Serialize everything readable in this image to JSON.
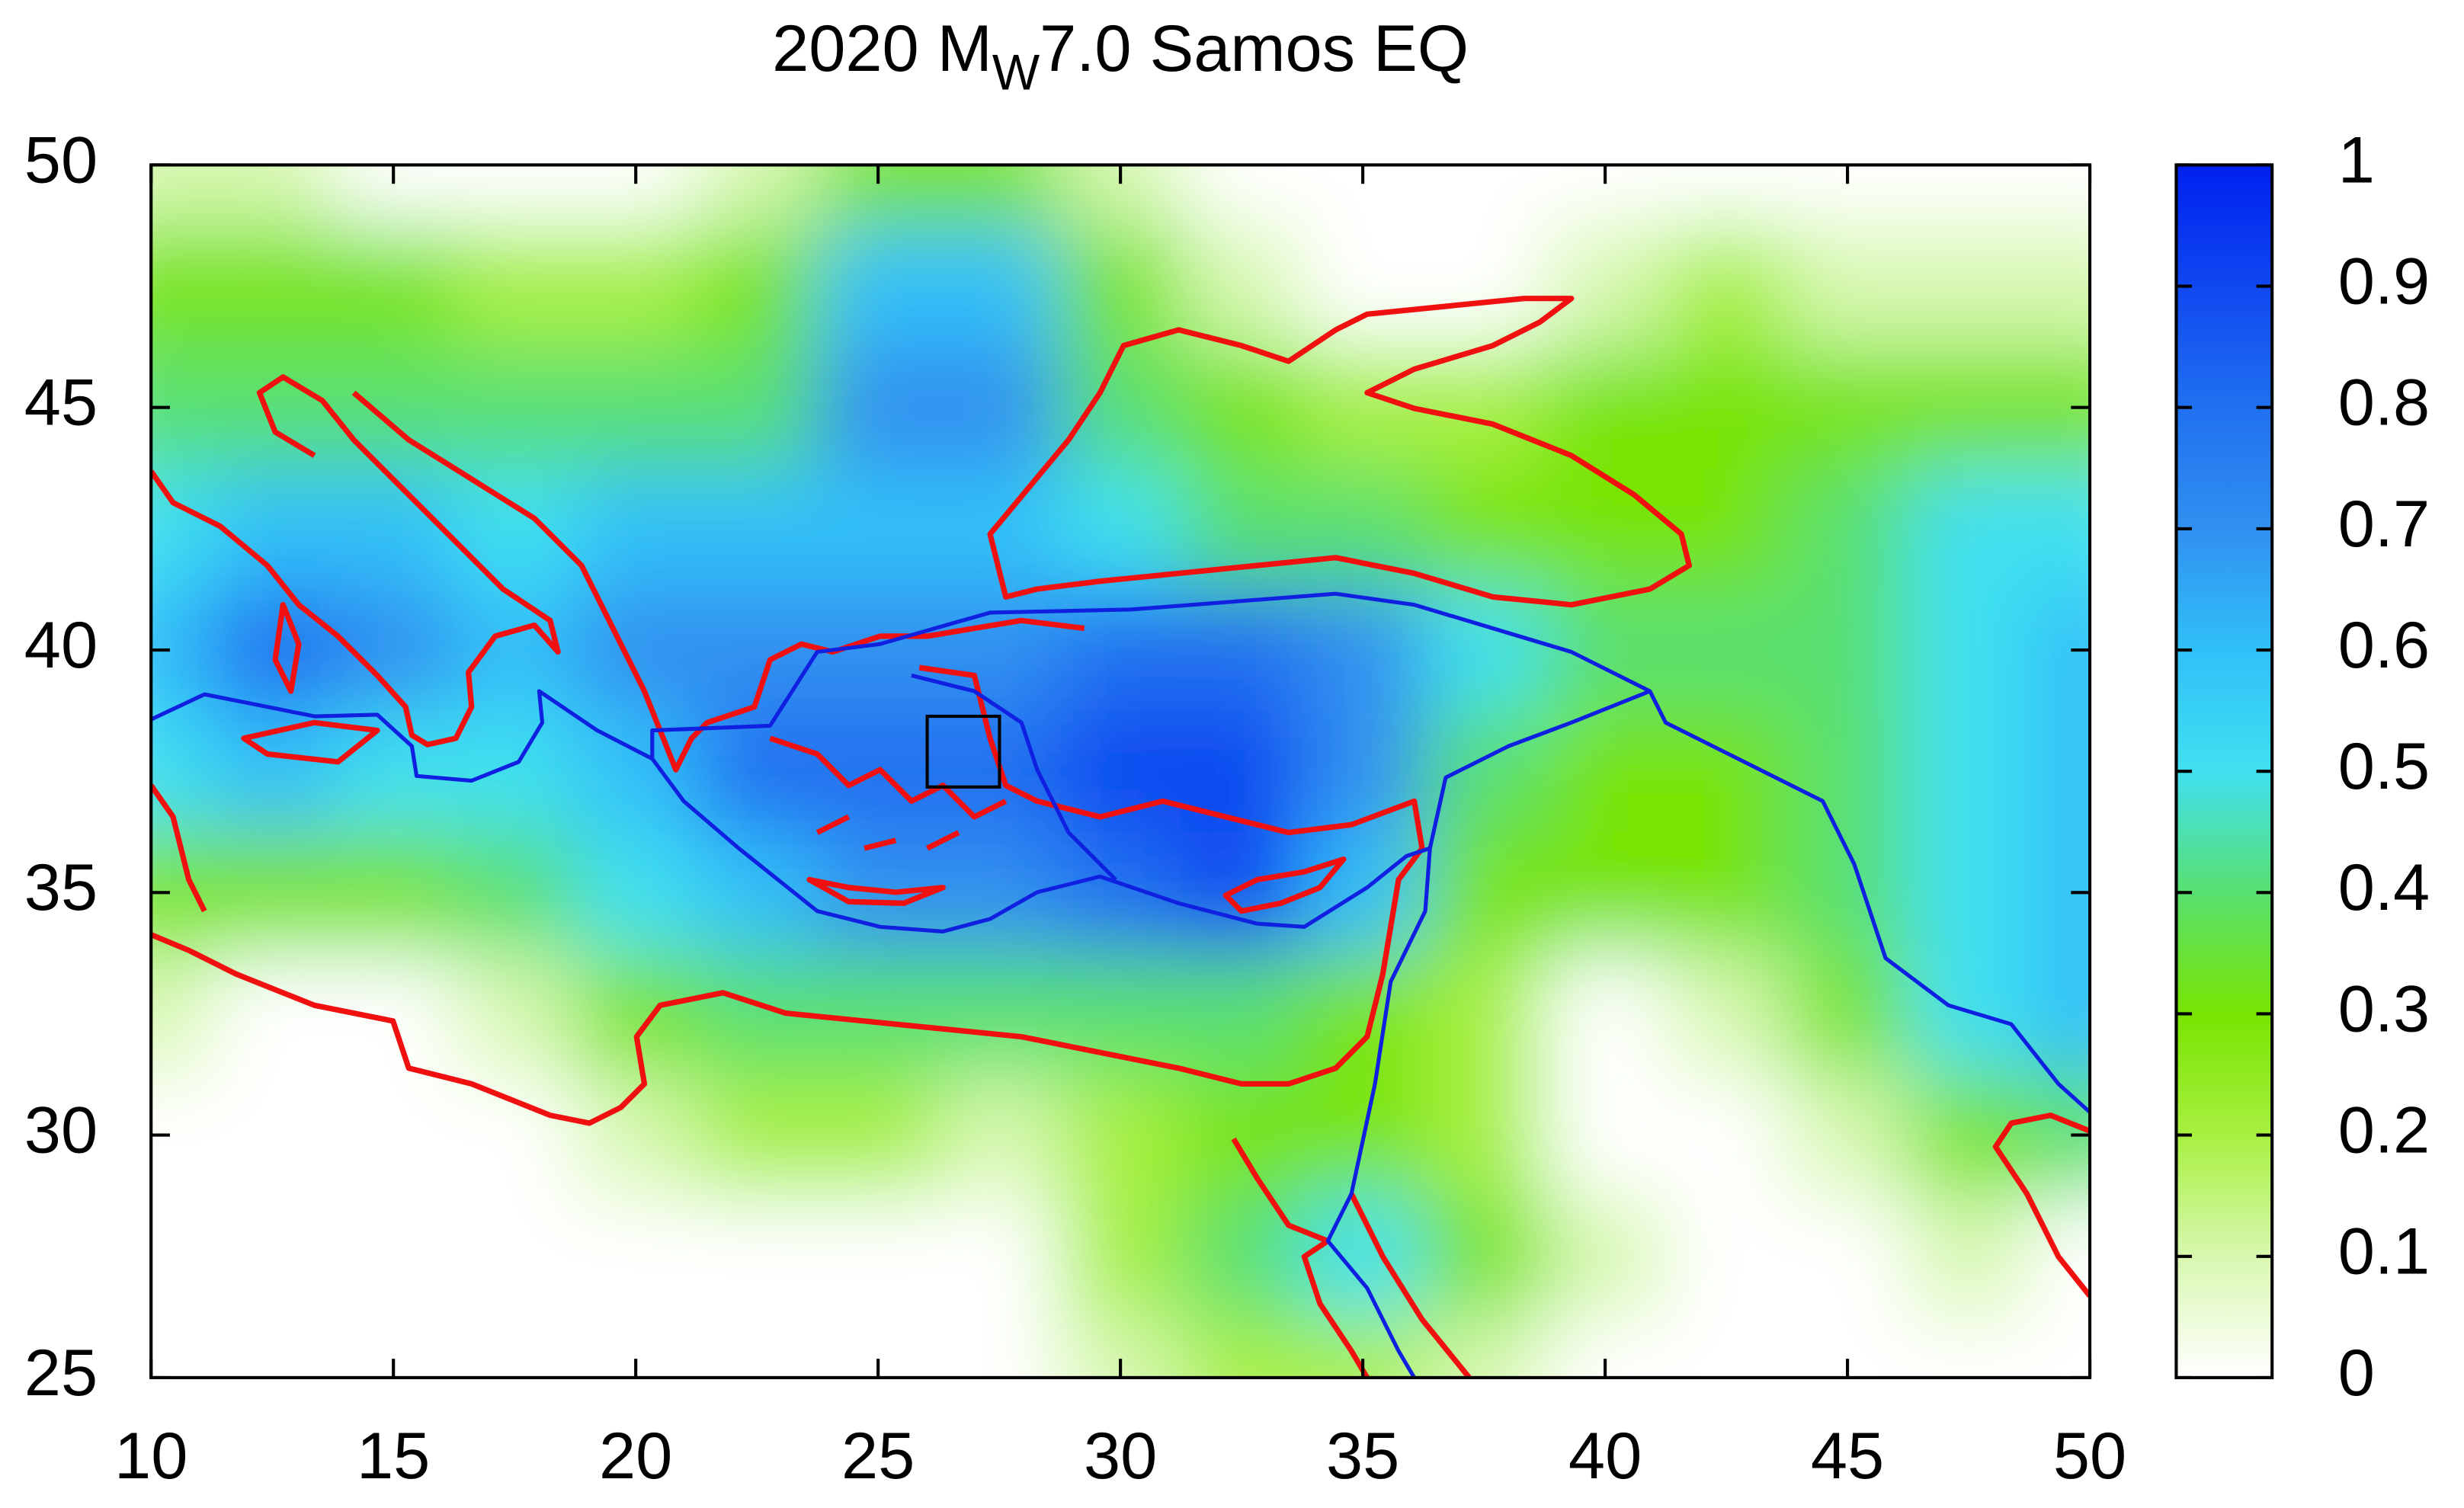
{
  "chart_data": {
    "type": "heatmap",
    "title_parts": [
      "2020 M",
      "W",
      "7.0 Samos EQ"
    ],
    "xlim": [
      10,
      50
    ],
    "xticks": [
      10,
      15,
      20,
      25,
      30,
      35,
      40,
      45,
      50
    ],
    "ylim": [
      25,
      50
    ],
    "yticks": [
      25,
      30,
      35,
      40,
      45,
      50
    ],
    "clim": [
      0,
      1
    ],
    "cticks": [
      0,
      0.1,
      0.2,
      0.3,
      0.4,
      0.5,
      0.6,
      0.7,
      0.8,
      0.9,
      1
    ],
    "colormap": [
      [
        0,
        "#ffffff"
      ],
      [
        0.1,
        "#d8f8b0"
      ],
      [
        0.2,
        "#a8f040"
      ],
      [
        0.3,
        "#78e400"
      ],
      [
        0.4,
        "#58e070"
      ],
      [
        0.5,
        "#40e0f0"
      ],
      [
        0.6,
        "#30c0f8"
      ],
      [
        0.7,
        "#3090f0"
      ],
      [
        0.8,
        "#2070f0"
      ],
      [
        0.9,
        "#1048f0"
      ],
      [
        1,
        "#0020f0"
      ]
    ],
    "x": [
      10,
      12.5,
      15,
      17.5,
      20,
      22.5,
      25,
      27.5,
      30,
      32.5,
      35,
      37.5,
      40,
      42.5,
      45,
      47.5,
      50
    ],
    "y": [
      50,
      47.5,
      45,
      42.5,
      40,
      37.5,
      35,
      32.5,
      30,
      27.5,
      25
    ],
    "z": [
      [
        0.1,
        0.1,
        0,
        0,
        0,
        0.1,
        0.3,
        0.3,
        0.1,
        0,
        0,
        0,
        0,
        0,
        0,
        0,
        0
      ],
      [
        0.3,
        0.3,
        0.3,
        0.2,
        0.2,
        0.3,
        0.6,
        0.6,
        0.3,
        0.1,
        0,
        0,
        0.1,
        0.2,
        0.1,
        0.1,
        0.1
      ],
      [
        0.4,
        0.4,
        0.4,
        0.4,
        0.4,
        0.4,
        0.7,
        0.7,
        0.4,
        0.3,
        0.2,
        0.2,
        0.3,
        0.3,
        0.3,
        0.3,
        0.3
      ],
      [
        0.5,
        0.6,
        0.6,
        0.5,
        0.6,
        0.6,
        0.6,
        0.6,
        0.5,
        0.4,
        0.4,
        0.3,
        0.3,
        0.3,
        0.4,
        0.5,
        0.5
      ],
      [
        0.6,
        0.8,
        0.7,
        0.6,
        0.7,
        0.7,
        0.7,
        0.7,
        0.8,
        0.8,
        0.7,
        0.5,
        0.4,
        0.4,
        0.4,
        0.5,
        0.6
      ],
      [
        0.5,
        0.6,
        0.5,
        0.5,
        0.6,
        0.8,
        0.8,
        0.8,
        0.9,
        0.9,
        0.7,
        0.4,
        0.3,
        0.3,
        0.4,
        0.5,
        0.6
      ],
      [
        0.3,
        0.3,
        0.3,
        0.4,
        0.5,
        0.6,
        0.7,
        0.7,
        0.8,
        0.9,
        0.6,
        0.3,
        0.3,
        0.3,
        0.4,
        0.5,
        0.6
      ],
      [
        0.1,
        0,
        0,
        0.1,
        0.3,
        0.4,
        0.4,
        0.4,
        0.4,
        0.4,
        0.3,
        0.2,
        0,
        0.1,
        0.3,
        0.5,
        0.6
      ],
      [
        0,
        0,
        0,
        0,
        0.1,
        0.2,
        0.2,
        0.1,
        0.2,
        0.3,
        0.3,
        0.2,
        0,
        0,
        0.1,
        0.3,
        0.4
      ],
      [
        0,
        0,
        0,
        0,
        0,
        0,
        0,
        0,
        0.2,
        0.4,
        0.5,
        0.3,
        0.1,
        0,
        0,
        0.1,
        0
      ],
      [
        0,
        0,
        0,
        0,
        0,
        0,
        0,
        0,
        0.1,
        0.2,
        0.2,
        0.1,
        0,
        0,
        0,
        0,
        0
      ]
    ]
  }
}
